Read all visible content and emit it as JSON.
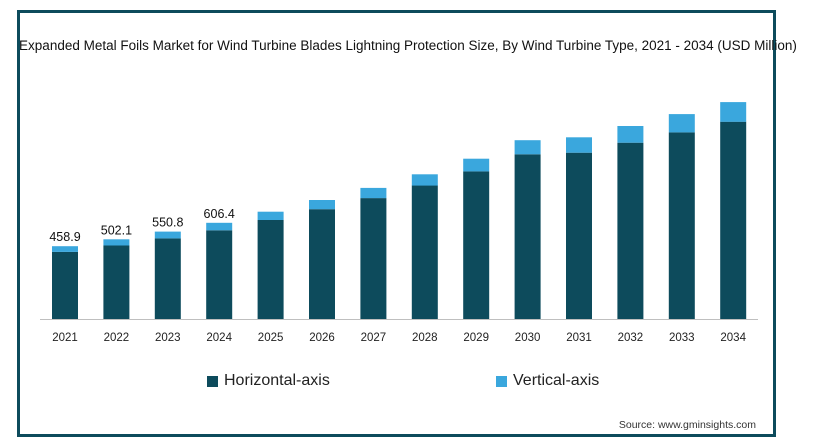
{
  "chart_data": {
    "type": "bar",
    "stacked": true,
    "title": "Expanded Metal Foils Market for Wind Turbine Blades Lightning Protection Size, By Wind Turbine Type, 2021 - 2034 (USD Million)",
    "categories": [
      "2021",
      "2022",
      "2023",
      "2024",
      "2025",
      "2026",
      "2027",
      "2028",
      "2029",
      "2030",
      "2031",
      "2032",
      "2033",
      "2034"
    ],
    "series": [
      {
        "name": "Horizontal-axis",
        "color": "#0d4b5c",
        "values": [
          423,
          463,
          508,
          559,
          624,
          692,
          762,
          841,
          930,
          1038,
          1048,
          1111,
          1176,
          1243
        ]
      },
      {
        "name": "Vertical-axis",
        "color": "#3aa7dd",
        "values": [
          36,
          39,
          43,
          47,
          52,
          58,
          64,
          71,
          80,
          89,
          97,
          105,
          115,
          124
        ]
      }
    ],
    "data_labels": [
      "458.9",
      "502.1",
      "550.8",
      "606.4",
      "",
      "",
      "",
      "",
      "",
      "",
      "",
      "",
      "",
      ""
    ],
    "ylim": [
      0,
      1380
    ],
    "grid": false,
    "legend_position": "bottom"
  },
  "source": "Source: www.gminsights.com"
}
